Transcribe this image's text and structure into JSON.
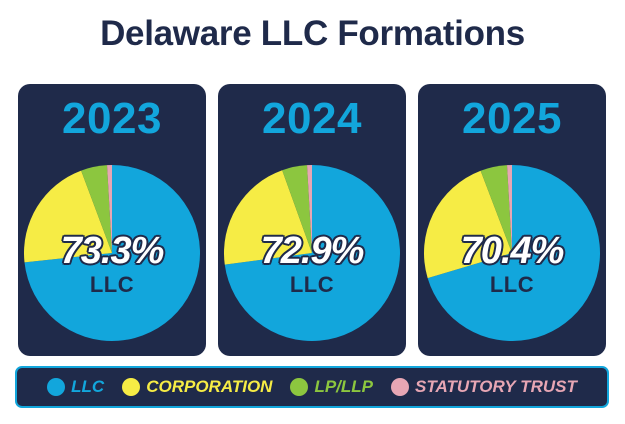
{
  "chart_data": {
    "type": "pie",
    "title": "Delaware LLC Formations",
    "legend": [
      {
        "label": "LLC",
        "color": "#12a6dc"
      },
      {
        "label": "CORPORATION",
        "color": "#f6ec45"
      },
      {
        "label": "LP/LLP",
        "color": "#8cc63f"
      },
      {
        "label": "STATUTORY TRUST",
        "color": "#e7a6b4"
      }
    ],
    "charts": [
      {
        "year": "2023",
        "center_label": "73.3%",
        "center_sub": "LLC",
        "slices": [
          {
            "label": "LLC",
            "value": 73.3
          },
          {
            "label": "CORPORATION",
            "value": 21.0
          },
          {
            "label": "LP/LLP",
            "value": 4.8
          },
          {
            "label": "STATUTORY TRUST",
            "value": 0.9
          }
        ]
      },
      {
        "year": "2024",
        "center_label": "72.9%",
        "center_sub": "LLC",
        "slices": [
          {
            "label": "LLC",
            "value": 72.9
          },
          {
            "label": "CORPORATION",
            "value": 21.6
          },
          {
            "label": "LP/LLP",
            "value": 4.6
          },
          {
            "label": "STATUTORY TRUST",
            "value": 0.9
          }
        ]
      },
      {
        "year": "2025",
        "center_label": "70.4%",
        "center_sub": "LLC",
        "slices": [
          {
            "label": "LLC",
            "value": 70.4
          },
          {
            "label": "CORPORATION",
            "value": 23.8
          },
          {
            "label": "LP/LLP",
            "value": 4.9
          },
          {
            "label": "STATUTORY TRUST",
            "value": 0.9
          }
        ]
      }
    ]
  }
}
